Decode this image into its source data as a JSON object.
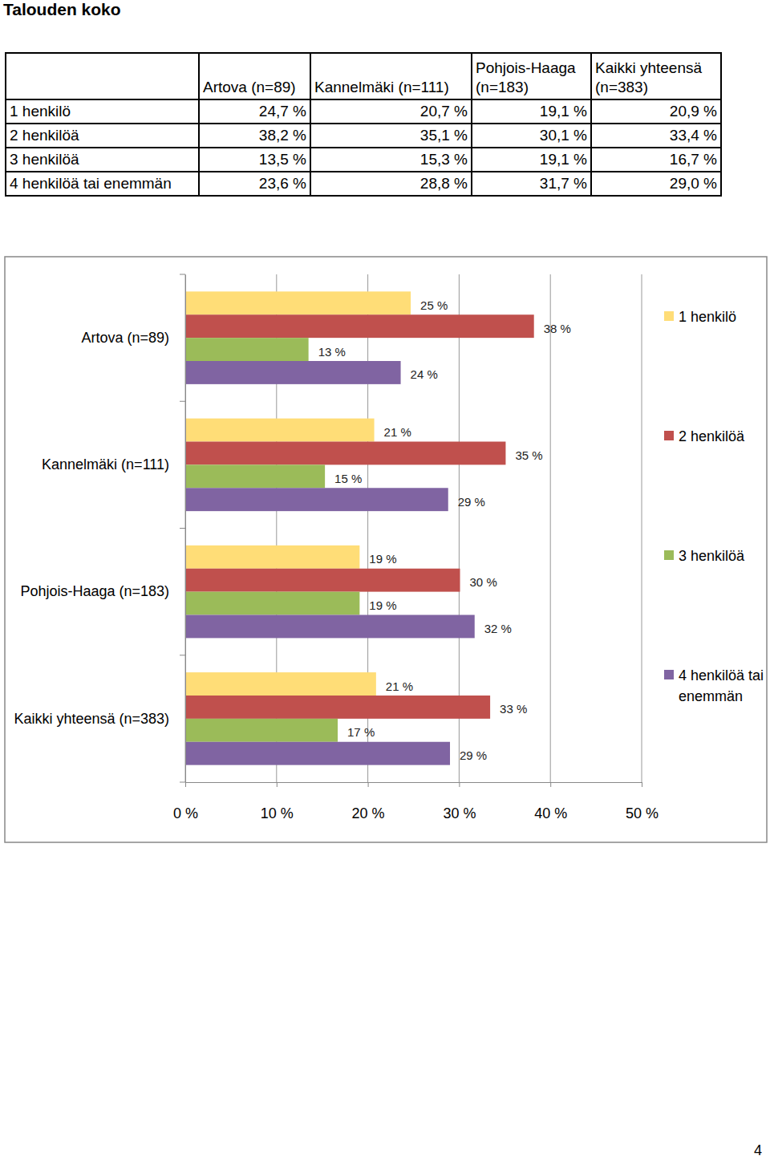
{
  "title": "Talouden koko",
  "page_number": "4",
  "table": {
    "header": [
      "",
      "Artova (n=89)",
      "Kannelmäki (n=111)",
      "Pohjois-Haaga (n=183)",
      "Kaikki yhteensä (n=383)"
    ],
    "rows": [
      [
        "1 henkilö",
        "24,7 %",
        "20,7 %",
        "19,1 %",
        "20,9 %"
      ],
      [
        "2 henkilöä",
        "38,2 %",
        "35,1 %",
        "30,1 %",
        "33,4 %"
      ],
      [
        "3 henkilöä",
        "13,5 %",
        "15,3 %",
        "19,1 %",
        "16,7 %"
      ],
      [
        "4 henkilöä tai enemmän",
        "23,6 %",
        "28,8 %",
        "31,7 %",
        "29,0 %"
      ]
    ]
  },
  "chart_data": {
    "type": "bar",
    "orientation": "horizontal",
    "categories": [
      "Artova (n=89)",
      "Kannelmäki (n=111)",
      "Pohjois-Haaga (n=183)",
      "Kaikki yhteensä (n=383)"
    ],
    "series": [
      {
        "name": "1 henkilö",
        "color": "#FFDD77",
        "values": [
          24.7,
          20.7,
          19.1,
          20.9
        ],
        "value_labels": [
          "25 %",
          "21 %",
          "19 %",
          "21 %"
        ]
      },
      {
        "name": "2 henkilöä",
        "color": "#C0504D",
        "values": [
          38.2,
          35.1,
          30.1,
          33.4
        ],
        "value_labels": [
          "38 %",
          "35 %",
          "30 %",
          "33 %"
        ]
      },
      {
        "name": "3 henkilöä",
        "color": "#9BBB59",
        "values": [
          13.5,
          15.3,
          19.1,
          16.7
        ],
        "value_labels": [
          "13 %",
          "15 %",
          "19 %",
          "17 %"
        ]
      },
      {
        "name": "4 henkilöä tai enemmän",
        "color": "#8064A2",
        "values": [
          23.6,
          28.8,
          31.7,
          29.0
        ],
        "value_labels": [
          "24 %",
          "29 %",
          "32 %",
          "29 %"
        ]
      }
    ],
    "xlim": [
      0,
      50
    ],
    "xticks": [
      {
        "value": 0,
        "label": "0 %"
      },
      {
        "value": 10,
        "label": "10 %"
      },
      {
        "value": 20,
        "label": "20 %"
      },
      {
        "value": 30,
        "label": "30 %"
      },
      {
        "value": 40,
        "label": "40 %"
      },
      {
        "value": 50,
        "label": "50 %"
      }
    ],
    "grid": true,
    "legend": "right",
    "data_labels": true
  }
}
